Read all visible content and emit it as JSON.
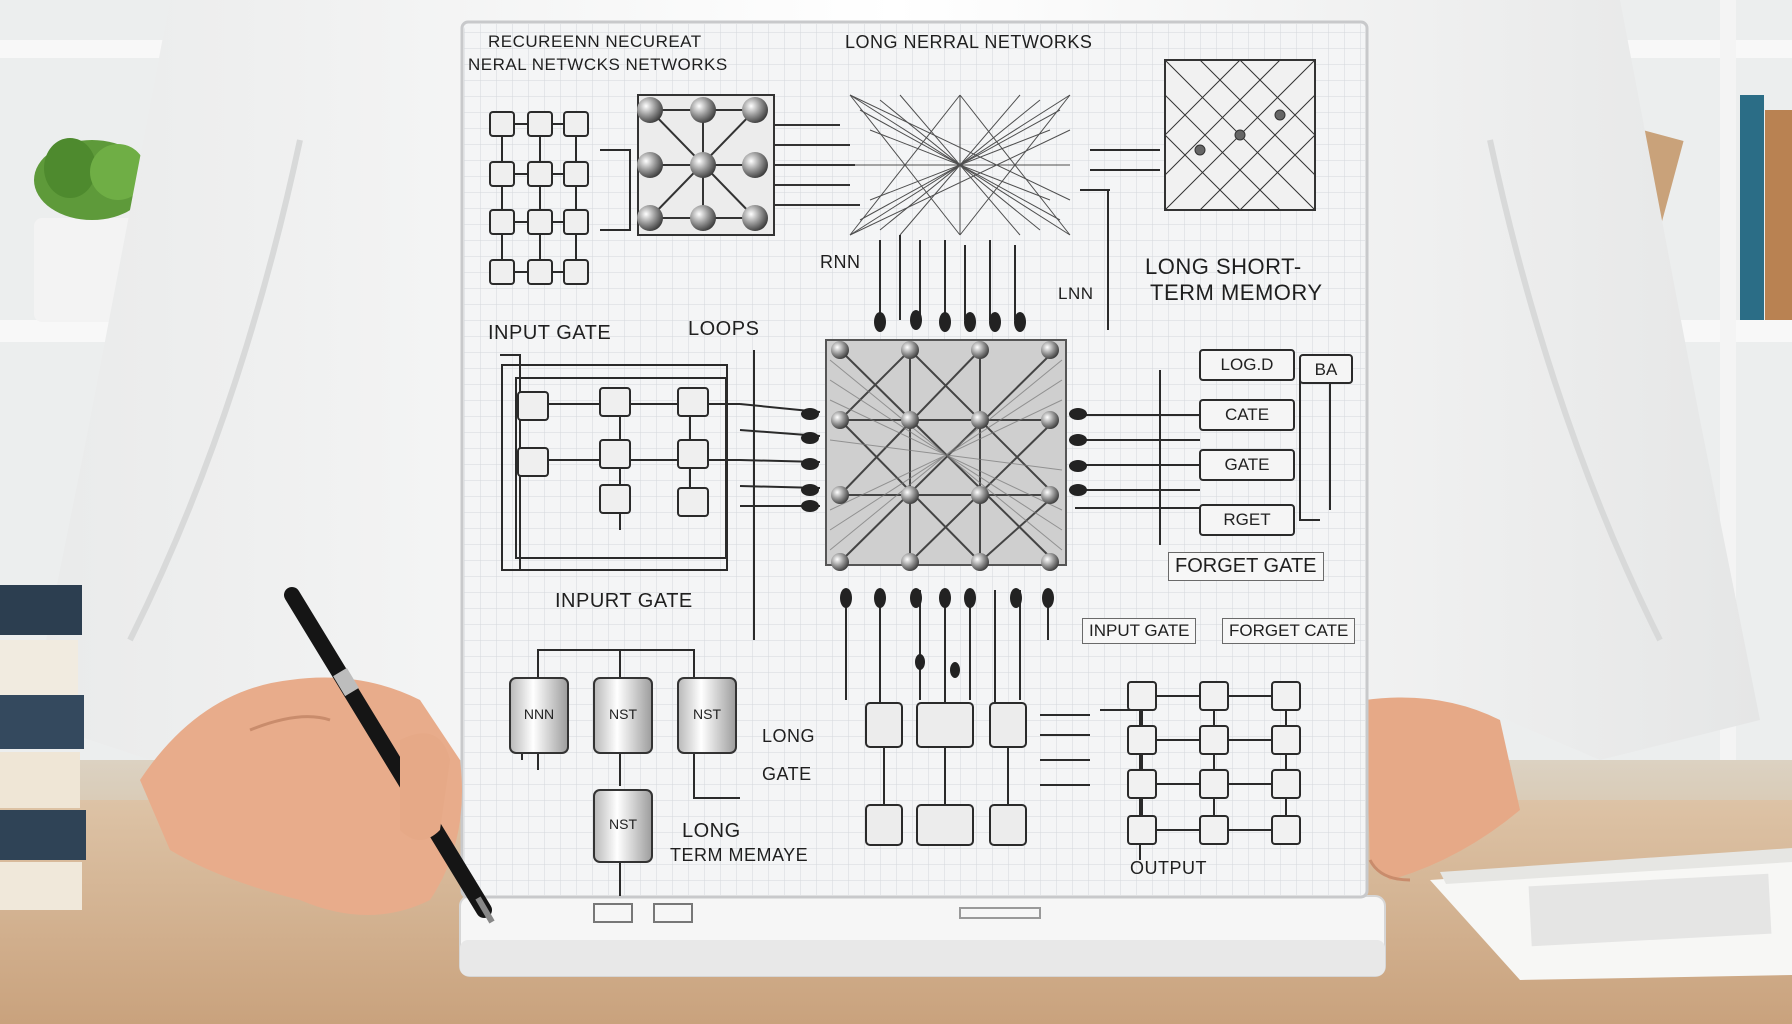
{
  "board": {
    "title_line1": "RECUREENN  NECUREAT",
    "title_line2": "NERAL NETWCKS NETWORKS",
    "title_center": "LONG NERRAL NETWORKS",
    "rnn": "RNN",
    "lnn": "LNN",
    "lstm_line1": "LONG SHORT-",
    "lstm_line2": "TERM MEMORY",
    "input_gate_top": "INPUT GATE",
    "loops": "LOOPS",
    "input_gate_mid": "INPURT GATE",
    "gate_log": "LOG.D",
    "gate_ba": "BA",
    "gate_cate": "CATE",
    "gate_gate": "GATE",
    "gate_rget": "RGET",
    "forget_gate": "FORGET GATE",
    "input_gate_tag": "INPUT GATE",
    "forget_cate_tag": "FORGET CATE",
    "cell_nnn": "NNN",
    "cell_nst1": "NST",
    "cell_nst2": "NST",
    "cell_nst3": "NST",
    "long_gate_1": "LONG",
    "long_gate_2": "GATE",
    "long_term_1": "LONG",
    "long_term_2": "TERM MEMAYE",
    "output": "OUTPUT"
  },
  "colors": {
    "board": "#f4f5f6",
    "grid": "#d6dade",
    "wire": "#2a2a2a",
    "shirt": "#fafafa",
    "desk": "#d8b896",
    "skin": "#e9b392"
  }
}
